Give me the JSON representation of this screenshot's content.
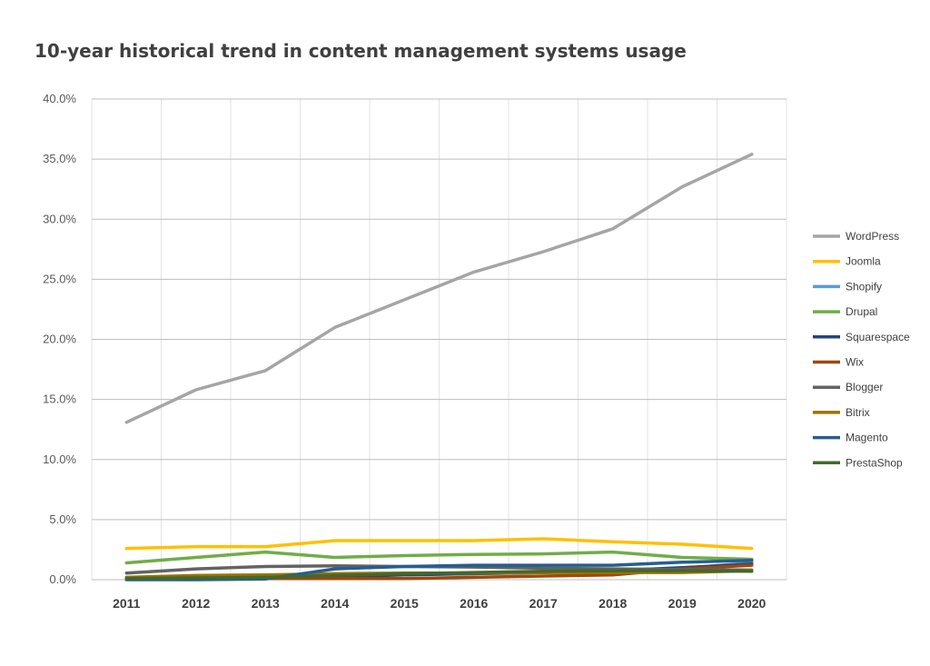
{
  "chart_data": {
    "type": "line",
    "title": "10-year historical trend in content management systems usage",
    "xlabel": "",
    "ylabel": "",
    "x": [
      "2011",
      "2012",
      "2013",
      "2014",
      "2015",
      "2016",
      "2017",
      "2018",
      "2019",
      "2020"
    ],
    "ylim": [
      0,
      40
    ],
    "yticks": [
      "0.0%",
      "5.0%",
      "10.0%",
      "15.0%",
      "20.0%",
      "25.0%",
      "30.0%",
      "35.0%",
      "40.0%"
    ],
    "grid": "horizontal and vertical",
    "legend_position": "right",
    "series": [
      {
        "name": "WordPress",
        "color": "#A5A5A5",
        "values": [
          13.1,
          15.8,
          17.4,
          21.0,
          23.3,
          25.6,
          27.3,
          29.2,
          32.7,
          35.4
        ]
      },
      {
        "name": "Joomla",
        "color": "#FFC000",
        "values": [
          2.6,
          2.75,
          2.75,
          3.25,
          3.25,
          3.25,
          3.4,
          3.15,
          2.95,
          2.6
        ]
      },
      {
        "name": "Shopify",
        "color": "#5B9BD5",
        "values": [
          0.05,
          0.1,
          0.2,
          0.3,
          0.45,
          0.5,
          0.6,
          0.7,
          0.95,
          1.4
        ]
      },
      {
        "name": "Drupal",
        "color": "#70AD47",
        "values": [
          1.4,
          1.85,
          2.3,
          1.85,
          2.0,
          2.1,
          2.15,
          2.3,
          1.85,
          1.7
        ]
      },
      {
        "name": "Squarespace",
        "color": "#264478",
        "values": [
          0.05,
          0.1,
          0.15,
          0.25,
          0.4,
          0.5,
          0.6,
          0.75,
          1.0,
          1.3
        ]
      },
      {
        "name": "Wix",
        "color": "#9E480E",
        "values": [
          0.05,
          0.05,
          0.1,
          0.1,
          0.1,
          0.2,
          0.3,
          0.4,
          0.9,
          1.2
        ]
      },
      {
        "name": "Blogger",
        "color": "#636363",
        "values": [
          0.55,
          0.9,
          1.1,
          1.15,
          1.1,
          1.05,
          0.95,
          0.9,
          0.85,
          0.8
        ]
      },
      {
        "name": "Bitrix",
        "color": "#997300",
        "values": [
          0.2,
          0.35,
          0.4,
          0.5,
          0.55,
          0.55,
          0.6,
          0.6,
          0.6,
          0.75
        ]
      },
      {
        "name": "Magento",
        "color": "#255E91",
        "values": [
          0.0,
          0.0,
          0.05,
          0.9,
          1.1,
          1.2,
          1.2,
          1.2,
          1.45,
          1.6
        ]
      },
      {
        "name": "PrestaShop",
        "color": "#43682B",
        "values": [
          0.1,
          0.15,
          0.2,
          0.35,
          0.5,
          0.6,
          0.7,
          0.75,
          0.75,
          0.7
        ]
      }
    ]
  }
}
